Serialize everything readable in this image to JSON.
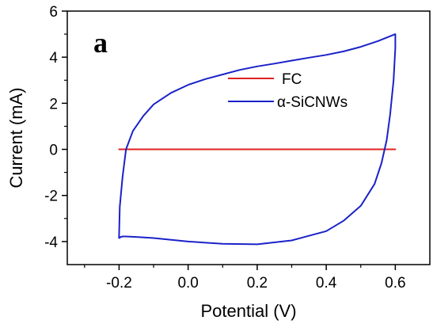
{
  "chart_data": {
    "type": "line",
    "title": "",
    "panel_label": "a",
    "xlabel": "Potential (V)",
    "ylabel": "Current (mA)",
    "xlim": [
      -0.35,
      0.7
    ],
    "ylim": [
      -5,
      6
    ],
    "xticks": [
      -0.2,
      0.0,
      0.2,
      0.4,
      0.6
    ],
    "xtick_labels": [
      "-0.2",
      "0.0",
      "0.2",
      "0.4",
      "0.6"
    ],
    "yticks": [
      -4,
      -2,
      0,
      2,
      4,
      6
    ],
    "ytick_labels": [
      "-4",
      "-2",
      "0",
      "2",
      "4",
      "6"
    ],
    "grid": false,
    "legend_position": "upper-right",
    "colors": {
      "FC": "#e02020",
      "SiCNWs": "#1a22c8"
    },
    "series": [
      {
        "name": "FC",
        "legend_label": "FC",
        "color": "#e02020",
        "x": [
          -0.2,
          0.6
        ],
        "y": [
          0.0,
          0.0
        ]
      },
      {
        "name": "α-SiCNWs",
        "legend_label": "α-SiCNWs",
        "color": "#1a22c8",
        "x": [
          -0.2,
          -0.198,
          -0.19,
          -0.18,
          -0.16,
          -0.13,
          -0.1,
          -0.05,
          0.0,
          0.05,
          0.1,
          0.15,
          0.2,
          0.25,
          0.3,
          0.35,
          0.4,
          0.45,
          0.5,
          0.55,
          0.58,
          0.6,
          0.6,
          0.595,
          0.585,
          0.575,
          0.56,
          0.54,
          0.5,
          0.45,
          0.4,
          0.3,
          0.2,
          0.1,
          0.0,
          -0.1,
          -0.15,
          -0.18,
          -0.19,
          -0.195,
          -0.2,
          -0.2
        ],
        "y": [
          -3.8,
          -2.5,
          -1.2,
          0.0,
          0.8,
          1.45,
          1.95,
          2.45,
          2.8,
          3.05,
          3.25,
          3.45,
          3.6,
          3.72,
          3.85,
          3.98,
          4.1,
          4.25,
          4.45,
          4.7,
          4.88,
          5.0,
          4.4,
          3.0,
          1.5,
          0.4,
          -0.6,
          -1.5,
          -2.45,
          -3.1,
          -3.55,
          -3.95,
          -4.12,
          -4.1,
          -4.0,
          -3.85,
          -3.8,
          -3.78,
          -3.78,
          -3.8,
          -3.85,
          -3.8
        ]
      }
    ]
  }
}
